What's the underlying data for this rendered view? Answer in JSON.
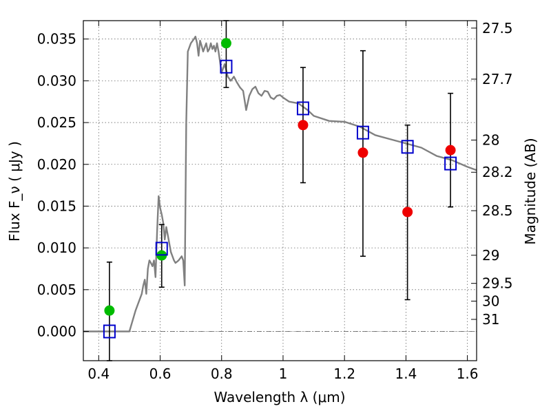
{
  "chart_data": {
    "type": "scatter",
    "title": "",
    "xlabel": "Wavelength  λ (μm)",
    "ylabel": "Flux  F_ν  ( μJy )",
    "y2label": "Magnitude (AB)",
    "xlim": [
      0.35,
      1.63
    ],
    "ylim": [
      -0.0035,
      0.0372
    ],
    "grid": true,
    "x_ticks": [
      0.4,
      0.6,
      0.8,
      1.0,
      1.2,
      1.4,
      1.6
    ],
    "x_tick_labels": [
      "0.4",
      "0.6",
      "0.8",
      "1",
      "1.2",
      "1.4",
      "1.6"
    ],
    "y_ticks": [
      0.0,
      0.005,
      0.01,
      0.015,
      0.02,
      0.025,
      0.03,
      0.035
    ],
    "y_tick_labels": [
      "0.000",
      "0.005",
      "0.010",
      "0.015",
      "0.020",
      "0.025",
      "0.030",
      "0.035"
    ],
    "y2_ticks": [
      27.5,
      27.7,
      28,
      28.2,
      28.5,
      29,
      29.5,
      30,
      31
    ],
    "y2_tick_labels": [
      "27.5",
      "27.7",
      "28",
      "28.2",
      "28.5",
      "29",
      "29.5",
      "30",
      "31"
    ],
    "colors": {
      "model_line": "#808080",
      "green_points": "#00bb00",
      "red_points": "#ee0000",
      "model_squares": "#0000cc",
      "errorbars": "#000000"
    },
    "series": [
      {
        "kind": "line",
        "x": [
          0.35,
          0.5,
          0.52,
          0.54,
          0.545,
          0.55,
          0.555,
          0.56,
          0.565,
          0.57,
          0.575,
          0.58,
          0.585,
          0.59,
          0.595,
          0.6,
          0.605,
          0.61,
          0.615,
          0.62,
          0.625,
          0.63,
          0.635,
          0.64,
          0.645,
          0.65,
          0.66,
          0.67,
          0.675,
          0.68,
          0.685,
          0.69,
          0.7,
          0.71,
          0.715,
          0.72,
          0.725,
          0.73,
          0.735,
          0.74,
          0.745,
          0.75,
          0.755,
          0.76,
          0.765,
          0.77,
          0.775,
          0.78,
          0.785,
          0.79,
          0.8,
          0.81,
          0.82,
          0.83,
          0.84,
          0.85,
          0.86,
          0.87,
          0.88,
          0.89,
          0.9,
          0.91,
          0.92,
          0.93,
          0.94,
          0.95,
          0.96,
          0.97,
          0.98,
          0.99,
          1.0,
          1.02,
          1.05,
          1.08,
          1.1,
          1.15,
          1.2,
          1.25,
          1.3,
          1.35,
          1.4,
          1.45,
          1.5,
          1.55,
          1.6,
          1.63
        ],
        "y": [
          0.0,
          0.0,
          0.0025,
          0.0045,
          0.0055,
          0.0062,
          0.0045,
          0.0075,
          0.0085,
          0.0082,
          0.0078,
          0.0085,
          0.0065,
          0.012,
          0.0162,
          0.0148,
          0.014,
          0.013,
          0.011,
          0.0125,
          0.0115,
          0.0105,
          0.0095,
          0.009,
          0.0085,
          0.0082,
          0.0085,
          0.009,
          0.0085,
          0.0055,
          0.025,
          0.0335,
          0.0345,
          0.035,
          0.0353,
          0.0345,
          0.033,
          0.0348,
          0.0342,
          0.0335,
          0.034,
          0.0345,
          0.0335,
          0.0338,
          0.0345,
          0.0338,
          0.0342,
          0.0335,
          0.0345,
          0.0335,
          0.031,
          0.032,
          0.0305,
          0.03,
          0.0305,
          0.0298,
          0.0292,
          0.0288,
          0.0265,
          0.0282,
          0.029,
          0.0293,
          0.0285,
          0.0282,
          0.0288,
          0.0287,
          0.028,
          0.0278,
          0.0282,
          0.0283,
          0.028,
          0.0275,
          0.0273,
          0.0265,
          0.0258,
          0.0252,
          0.0251,
          0.0245,
          0.0235,
          0.023,
          0.0225,
          0.022,
          0.021,
          0.0205,
          0.0197,
          0.0193
        ]
      },
      {
        "kind": "points",
        "marker": "circle",
        "x": [
          0.435,
          0.605,
          0.815
        ],
        "y": [
          0.0025,
          0.0091,
          0.0345
        ]
      },
      {
        "kind": "points",
        "marker": "circle",
        "x": [
          1.065,
          1.26,
          1.405,
          1.545
        ],
        "y": [
          0.0247,
          0.0214,
          0.0143,
          0.0217
        ]
      },
      {
        "kind": "points",
        "marker": "open-square",
        "x": [
          0.435,
          0.605,
          0.815,
          1.065,
          1.26,
          1.405,
          1.545
        ],
        "y": [
          0.0,
          0.0099,
          0.0317,
          0.0267,
          0.0238,
          0.0221,
          0.0201
        ]
      },
      {
        "kind": "errorbars",
        "x": [
          0.435,
          0.605,
          0.815,
          1.065,
          1.26,
          1.405,
          1.545
        ],
        "ylow": [
          -0.0035,
          0.0053,
          0.0292,
          0.0178,
          0.009,
          0.0038,
          0.0149
        ],
        "yhigh": [
          0.0083,
          0.0128,
          0.0372,
          0.0316,
          0.0336,
          0.0247,
          0.0285
        ]
      }
    ]
  }
}
